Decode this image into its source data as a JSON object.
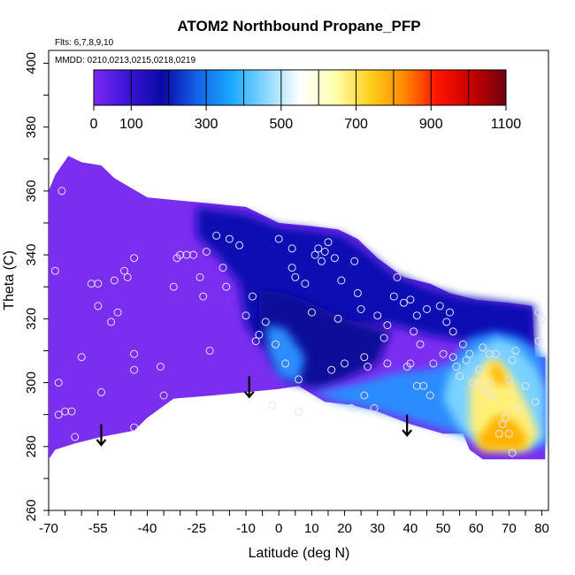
{
  "chart_data": {
    "type": "heatmap",
    "title": "ATOM2 Northbound Propane_PFP",
    "flights_label": "Flts: 6,7,8,9,10",
    "dates_label": "MMDD: 0210,0213,0215,0218,0219",
    "xlabel": "Latitude (deg N)",
    "ylabel": "Theta (C)",
    "xlim": [
      -70,
      82
    ],
    "ylim": [
      260,
      404
    ],
    "x_ticks": [
      -70,
      -55,
      -40,
      -25,
      -10,
      0,
      10,
      20,
      30,
      40,
      50,
      60,
      70,
      80
    ],
    "y_ticks": [
      260,
      280,
      300,
      320,
      340,
      360,
      380,
      400
    ],
    "colorbar": {
      "range": [
        0,
        1100
      ],
      "tick_values": [
        0,
        100,
        300,
        500,
        700,
        900,
        1100
      ],
      "colors": [
        "#7a28f0",
        "#3a14d8",
        "#0a0aa6",
        "#1460e8",
        "#18a8ff",
        "#8ad8ff",
        "#ffffff",
        "#ffffb4",
        "#ffd21e",
        "#ff8c00",
        "#ff1400",
        "#c80000",
        "#700010"
      ]
    },
    "field_regions": {
      "low_background": "#7b2df0",
      "mid_blue": "#1010b4",
      "dark_blue": "#0a0a9a",
      "light_blue": "#2c8cff",
      "cyan": "#78d2ff",
      "yellow": "#fff07a",
      "orange": "#ffb400"
    },
    "arrows_at_latitude": [
      -54,
      -9,
      39
    ],
    "sample_points": [
      [
        -66,
        360
      ],
      [
        -68,
        335
      ],
      [
        -67,
        300
      ],
      [
        -67,
        290
      ],
      [
        -65,
        291
      ],
      [
        -63,
        291
      ],
      [
        -62,
        283
      ],
      [
        -60,
        308
      ],
      [
        -57,
        331
      ],
      [
        -55,
        331
      ],
      [
        -55,
        324
      ],
      [
        -54,
        297
      ],
      [
        -50,
        332
      ],
      [
        -51,
        319
      ],
      [
        -49,
        322
      ],
      [
        -46,
        333
      ],
      [
        -47,
        335
      ],
      [
        -44,
        339
      ],
      [
        -44,
        304
      ],
      [
        -44,
        309
      ],
      [
        -44,
        286
      ],
      [
        -36,
        305
      ],
      [
        -35,
        296
      ],
      [
        -32,
        330
      ],
      [
        -31,
        339
      ],
      [
        -30,
        340
      ],
      [
        -28,
        340
      ],
      [
        -26,
        340
      ],
      [
        -24,
        333
      ],
      [
        -23,
        327
      ],
      [
        -22,
        341
      ],
      [
        -21,
        310
      ],
      [
        -19,
        346
      ],
      [
        -17,
        336
      ],
      [
        -16,
        330
      ],
      [
        -15,
        345
      ],
      [
        -12,
        343
      ],
      [
        -10,
        321
      ],
      [
        -8,
        327
      ],
      [
        -7,
        313
      ],
      [
        -6,
        315
      ],
      [
        -4,
        319
      ],
      [
        -2,
        293
      ],
      [
        -1,
        312
      ],
      [
        0,
        345
      ],
      [
        2,
        306
      ],
      [
        4,
        342
      ],
      [
        4,
        336
      ],
      [
        5,
        333
      ],
      [
        6,
        291
      ],
      [
        6,
        301
      ],
      [
        8,
        331
      ],
      [
        10,
        322
      ],
      [
        11,
        340
      ],
      [
        12,
        342
      ],
      [
        13,
        338
      ],
      [
        14,
        341
      ],
      [
        15,
        344
      ],
      [
        16,
        304
      ],
      [
        17,
        339
      ],
      [
        18,
        320
      ],
      [
        19,
        332
      ],
      [
        20,
        306
      ],
      [
        22,
        292
      ],
      [
        23,
        338
      ],
      [
        24,
        328
      ],
      [
        25,
        323
      ],
      [
        26,
        308
      ],
      [
        26,
        296
      ],
      [
        27,
        305
      ],
      [
        30,
        321
      ],
      [
        32,
        314
      ],
      [
        33,
        318
      ],
      [
        33,
        306
      ],
      [
        35,
        327
      ],
      [
        36,
        333
      ],
      [
        38,
        325
      ],
      [
        40,
        326
      ],
      [
        41,
        316
      ],
      [
        42,
        321
      ],
      [
        43,
        312
      ],
      [
        45,
        323
      ],
      [
        47,
        306
      ],
      [
        49,
        324
      ],
      [
        50,
        309
      ],
      [
        51,
        319
      ],
      [
        52,
        322
      ],
      [
        53,
        316
      ],
      [
        56,
        312
      ],
      [
        57,
        307
      ],
      [
        58,
        309
      ],
      [
        59,
        300
      ],
      [
        61,
        304
      ],
      [
        62,
        311
      ],
      [
        63,
        297
      ],
      [
        64,
        309
      ],
      [
        64,
        300
      ],
      [
        65,
        296
      ],
      [
        66,
        309
      ],
      [
        67,
        284
      ],
      [
        68,
        287
      ],
      [
        69,
        289
      ],
      [
        70,
        301
      ],
      [
        70,
        284
      ],
      [
        71,
        278
      ],
      [
        72,
        310
      ],
      [
        73,
        292
      ],
      [
        75,
        299
      ],
      [
        78,
        294
      ],
      [
        79,
        322
      ],
      [
        80,
        320
      ],
      [
        79,
        313
      ],
      [
        53,
        308
      ],
      [
        54,
        305
      ],
      [
        55,
        302
      ],
      [
        61,
        299
      ],
      [
        71,
        307
      ],
      [
        46,
        296
      ],
      [
        44,
        299
      ],
      [
        42,
        299
      ],
      [
        40,
        306
      ],
      [
        39,
        305
      ],
      [
        29,
        292
      ]
    ]
  }
}
